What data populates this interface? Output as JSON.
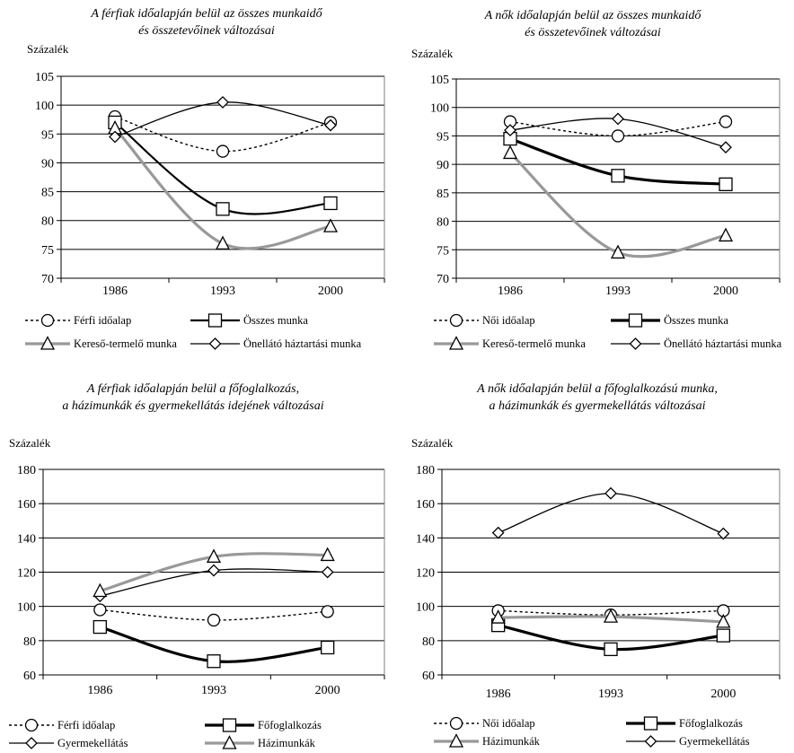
{
  "chart_data": [
    {
      "type": "line",
      "title": "A férfiak időalapján belül az összes munkaidő és összetevőinek változásai",
      "title_lines": [
        "A férfiak időalapján belül az összes munkaidő",
        "és összetevőinek változásai"
      ],
      "ylabel": "Százalék",
      "categories": [
        "1986",
        "1993",
        "2000"
      ],
      "ylim": [
        70,
        105
      ],
      "yticks": [
        70,
        75,
        80,
        85,
        90,
        95,
        100,
        105
      ],
      "grid": true,
      "legend_position": "bottom",
      "series": [
        {
          "name": "Férfi időalap",
          "values": [
            98,
            92,
            97
          ],
          "color": "#000000",
          "style": "dotted",
          "marker": "circle"
        },
        {
          "name": "Összes munka",
          "values": [
            97,
            82,
            83
          ],
          "color": "#000000",
          "style": "solid-medium",
          "marker": "square"
        },
        {
          "name": "Kereső-termelő munka",
          "values": [
            96,
            76,
            79
          ],
          "color": "#999999",
          "style": "solid-thick",
          "marker": "triangle"
        },
        {
          "name": "Önellátó háztartási munka",
          "values": [
            94.5,
            100.5,
            96.5
          ],
          "color": "#000000",
          "style": "solid-thin",
          "marker": "diamond"
        }
      ]
    },
    {
      "type": "line",
      "title": "A nők időalapján belül az összes munkaidő és összetevőinek változásai",
      "title_lines": [
        "A nők időalapján belül az összes munkaidő",
        "és összetevőinek változásai"
      ],
      "ylabel": "Százalék",
      "categories": [
        "1986",
        "1993",
        "2000"
      ],
      "ylim": [
        70,
        105
      ],
      "yticks": [
        70,
        75,
        80,
        85,
        90,
        95,
        100,
        105
      ],
      "grid": true,
      "legend_position": "bottom",
      "series": [
        {
          "name": "Női időalap",
          "values": [
            97.5,
            95,
            97.5
          ],
          "color": "#000000",
          "style": "dotted",
          "marker": "circle"
        },
        {
          "name": "Összes munka",
          "values": [
            94.5,
            88,
            86.5
          ],
          "color": "#000000",
          "style": "solid-thick",
          "marker": "square"
        },
        {
          "name": "Kereső-termelő munka",
          "values": [
            92,
            74.5,
            77.5
          ],
          "color": "#999999",
          "style": "solid-thick",
          "marker": "triangle"
        },
        {
          "name": "Önellátó háztartási munka",
          "values": [
            96,
            98,
            93
          ],
          "color": "#000000",
          "style": "solid-thin",
          "marker": "diamond"
        }
      ]
    },
    {
      "type": "line",
      "title": "A férfiak időalapján belül a főfoglalkozás, a házimunkák és gyermekellátás idejének változásai",
      "title_lines": [
        "A férfiak időalapján belül a főfoglalkozás,",
        "a házimunkák és gyermekellátás idejének változásai"
      ],
      "ylabel": "Százalék",
      "categories": [
        "1986",
        "1993",
        "2000"
      ],
      "ylim": [
        60,
        180
      ],
      "yticks": [
        60,
        80,
        100,
        120,
        140,
        160,
        180
      ],
      "grid": true,
      "legend_position": "bottom",
      "series": [
        {
          "name": "Férfi időalap",
          "values": [
            98,
            92,
            97
          ],
          "color": "#000000",
          "style": "dotted",
          "marker": "circle"
        },
        {
          "name": "Főfoglalkozás",
          "values": [
            88,
            68,
            76
          ],
          "color": "#000000",
          "style": "solid-thick",
          "marker": "square"
        },
        {
          "name": "Gyermekellátás",
          "values": [
            106,
            121,
            120
          ],
          "color": "#000000",
          "style": "solid-thin",
          "marker": "diamond"
        },
        {
          "name": "Házimunkák",
          "values": [
            109,
            129,
            130
          ],
          "color": "#999999",
          "style": "solid-thick",
          "marker": "triangle"
        }
      ]
    },
    {
      "type": "line",
      "title": "A nők időalapján belül a főfoglalkozású munka, a házimunkák és gyermekellátás változásai",
      "title_lines": [
        "A nők időalapján belül a főfoglalkozású munka,",
        "a házimunkák és gyermekellátás változásai"
      ],
      "ylabel": "Százalék",
      "categories": [
        "1986",
        "1993",
        "2000"
      ],
      "ylim": [
        60,
        180
      ],
      "yticks": [
        60,
        80,
        100,
        120,
        140,
        160,
        180
      ],
      "grid": true,
      "legend_position": "bottom",
      "series": [
        {
          "name": "Női időalap",
          "values": [
            97.5,
            95,
            97.5
          ],
          "color": "#000000",
          "style": "dotted",
          "marker": "circle"
        },
        {
          "name": "Főfoglalkozás",
          "values": [
            89,
            75,
            83
          ],
          "color": "#000000",
          "style": "solid-thick",
          "marker": "square"
        },
        {
          "name": "Házimunkák",
          "values": [
            93.5,
            94,
            91
          ],
          "color": "#999999",
          "style": "solid-thick",
          "marker": "triangle"
        },
        {
          "name": "Gyermekellátás",
          "values": [
            143,
            166,
            142.5
          ],
          "color": "#000000",
          "style": "solid-thin",
          "marker": "diamond"
        }
      ]
    }
  ]
}
